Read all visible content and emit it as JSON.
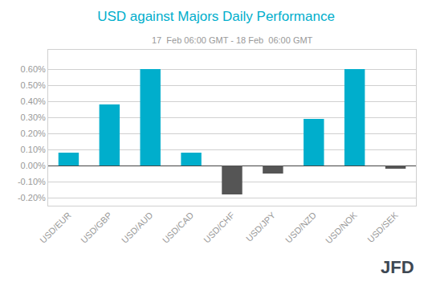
{
  "chart_data": {
    "type": "bar",
    "title": "USD against Majors Daily Performance",
    "subtitle": "17  Feb 06:00 GMT - 18 Feb  06:00 GMT",
    "annotations": [
      "JFD"
    ],
    "categories": [
      "USD/EUR",
      "USD/GBP",
      "USD/AUD",
      "USD/CAD",
      "USD/CHF",
      "USD/JPY",
      "USD/NZD",
      "USD/NOK",
      "USD/SEK"
    ],
    "values": [
      0.0008,
      0.0038,
      0.006,
      0.0008,
      -0.0018,
      -0.0005,
      0.0029,
      0.006,
      -0.0002
    ],
    "colors": [
      "#00AECC",
      "#00AECC",
      "#00AECC",
      "#00AECC",
      "#555555",
      "#555555",
      "#00AECC",
      "#00AECC",
      "#555555"
    ],
    "ylim": [
      -0.0025,
      0.0072
    ],
    "yticks": [
      {
        "value": -0.002,
        "label": "-0.20%"
      },
      {
        "value": -0.001,
        "label": "-0.10%"
      },
      {
        "value": 0.0,
        "label": "0.00%"
      },
      {
        "value": 0.001,
        "label": "0.10%"
      },
      {
        "value": 0.002,
        "label": "0.20%"
      },
      {
        "value": 0.003,
        "label": "0.30%"
      },
      {
        "value": 0.004,
        "label": "0.40%"
      },
      {
        "value": 0.005,
        "label": "0.50%"
      },
      {
        "value": 0.006,
        "label": "0.60%"
      }
    ],
    "grid": true
  }
}
